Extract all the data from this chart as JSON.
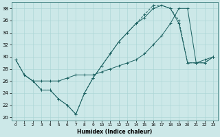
{
  "title": "",
  "xlabel": "Humidex (Indice chaleur)",
  "bg_color": "#cce8e8",
  "line_color": "#1a6060",
  "xlim": [
    -0.5,
    23.5
  ],
  "ylim": [
    19.5,
    39
  ],
  "yticks": [
    20,
    22,
    24,
    26,
    28,
    30,
    32,
    34,
    36,
    38
  ],
  "xticks": [
    0,
    1,
    2,
    3,
    4,
    5,
    6,
    7,
    8,
    9,
    10,
    11,
    12,
    13,
    14,
    15,
    16,
    17,
    18,
    19,
    20,
    21,
    22,
    23
  ],
  "series": [
    {
      "x": [
        0,
        1,
        2,
        3,
        4,
        5,
        6,
        7,
        8,
        9,
        10,
        11,
        12,
        13,
        14,
        15,
        16,
        17,
        18,
        19,
        20,
        21,
        22,
        23
      ],
      "y": [
        29.5,
        27.0,
        26.0,
        24.5,
        24.5,
        23.0,
        22.0,
        20.5,
        24.0,
        26.5,
        28.5,
        30.5,
        32.5,
        34.0,
        35.5,
        36.5,
        38.0,
        38.5,
        38.0,
        35.5,
        29.0,
        29.0,
        29.5,
        30.0
      ],
      "linestyle": "-",
      "marker": "+"
    },
    {
      "x": [
        0,
        1,
        2,
        3,
        4,
        5,
        6,
        7,
        8,
        9,
        10,
        11,
        12,
        13,
        14,
        15,
        16,
        17,
        18,
        19,
        20,
        21,
        22,
        23
      ],
      "y": [
        29.5,
        27.0,
        26.0,
        24.5,
        24.5,
        23.0,
        22.0,
        20.5,
        24.0,
        26.5,
        28.5,
        30.5,
        32.5,
        34.0,
        35.5,
        37.0,
        38.5,
        38.5,
        38.0,
        36.0,
        29.0,
        29.0,
        29.0,
        30.0
      ],
      "linestyle": "--",
      "marker": "+"
    },
    {
      "x": [
        1,
        2,
        3,
        4,
        5,
        6,
        7,
        8,
        9,
        10,
        11,
        12,
        13,
        14,
        15,
        16,
        17,
        18,
        19,
        20,
        21,
        22,
        23
      ],
      "y": [
        27.0,
        26.0,
        26.0,
        26.0,
        26.0,
        26.5,
        27.0,
        27.0,
        27.0,
        27.5,
        28.0,
        28.5,
        29.0,
        29.5,
        30.5,
        32.0,
        33.5,
        35.5,
        38.0,
        38.0,
        29.0,
        29.0,
        30.0
      ],
      "linestyle": "-",
      "marker": "+"
    }
  ]
}
